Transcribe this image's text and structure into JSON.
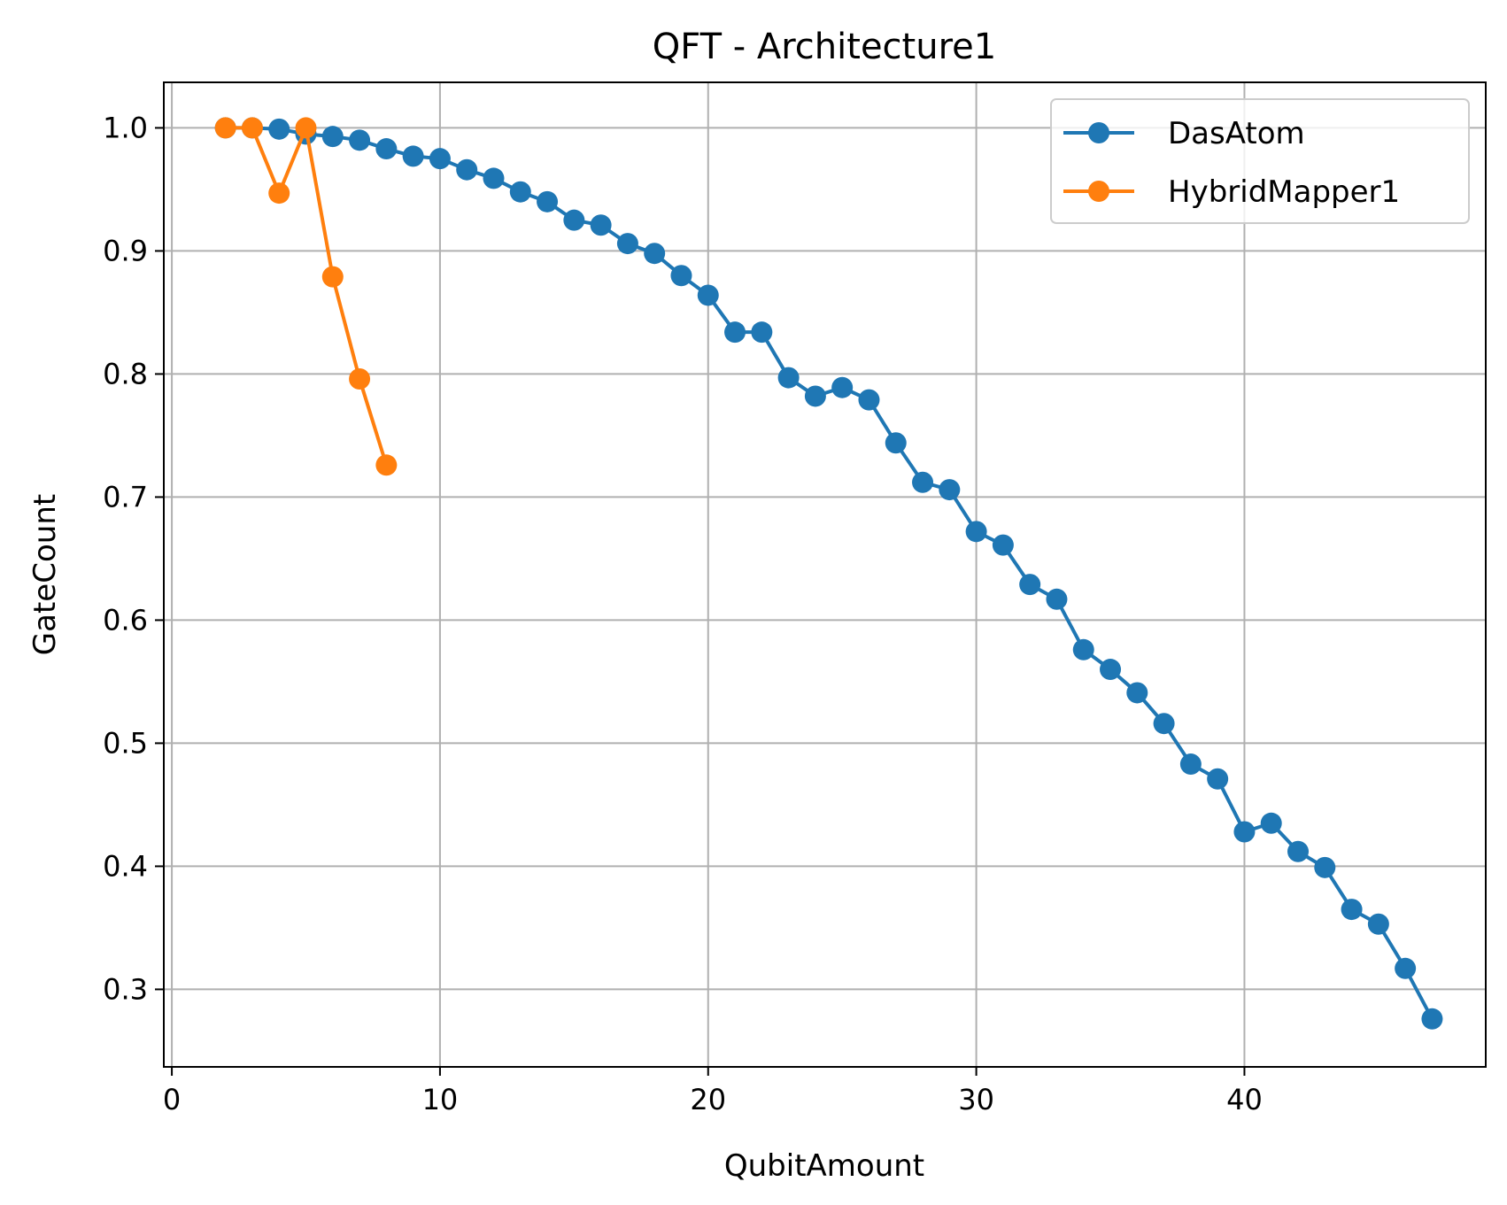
{
  "chart_data": {
    "type": "line",
    "title": "QFT - Architecture1",
    "xlabel": "QubitAmount",
    "ylabel": "GateCount",
    "xlim": [
      -0.3,
      49.0
    ],
    "ylim": [
      0.237,
      1.037
    ],
    "xticks": [
      0,
      10,
      20,
      30,
      40
    ],
    "xtick_labels": [
      "0",
      "10",
      "20",
      "30",
      "40"
    ],
    "yticks": [
      0.3,
      0.4,
      0.5,
      0.6,
      0.7,
      0.8,
      0.9,
      1.0
    ],
    "ytick_labels": [
      "0.3",
      "0.4",
      "0.5",
      "0.6",
      "0.7",
      "0.8",
      "0.9",
      "1.0"
    ],
    "grid": true,
    "legend_position": "top-right",
    "series": [
      {
        "name": "DasAtom",
        "color": "#1f77b4",
        "marker": "circle",
        "x": [
          2,
          3,
          4,
          5,
          6,
          7,
          8,
          9,
          10,
          11,
          12,
          13,
          14,
          15,
          16,
          17,
          18,
          19,
          20,
          21,
          22,
          23,
          24,
          25,
          26,
          27,
          28,
          29,
          30,
          31,
          32,
          33,
          34,
          35,
          36,
          37,
          38,
          39,
          40,
          41,
          42,
          43,
          44,
          45,
          46,
          47
        ],
        "y": [
          1.0,
          1.0,
          0.999,
          0.995,
          0.993,
          0.99,
          0.983,
          0.977,
          0.975,
          0.966,
          0.959,
          0.948,
          0.94,
          0.925,
          0.921,
          0.906,
          0.898,
          0.88,
          0.864,
          0.834,
          0.834,
          0.797,
          0.782,
          0.789,
          0.779,
          0.744,
          0.712,
          0.706,
          0.672,
          0.661,
          0.629,
          0.617,
          0.576,
          0.56,
          0.541,
          0.516,
          0.483,
          0.471,
          0.428,
          0.435,
          0.412,
          0.399,
          0.365,
          0.353,
          0.317,
          0.276
        ]
      },
      {
        "name": "HybridMapper1",
        "color": "#ff7f0e",
        "marker": "circle",
        "x": [
          2,
          3,
          4,
          5,
          6,
          7,
          8
        ],
        "y": [
          1.0,
          1.0,
          0.947,
          1.0,
          0.879,
          0.796,
          0.726
        ]
      }
    ]
  }
}
